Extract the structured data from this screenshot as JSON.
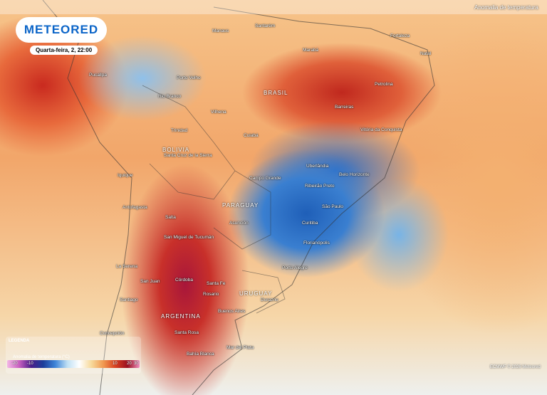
{
  "header": {
    "brand": "METEORED",
    "datetime": "Quarta-feira, 2, 22:00",
    "layer_title": "Anomalia de temperatura"
  },
  "map": {
    "countries": [
      "BRASIL",
      "BOLIVIA",
      "PARAGUAY",
      "ARGENTINA",
      "URUGUAY"
    ],
    "cities": [
      "Manaus",
      "Santarém",
      "Marabá",
      "Fortaleza",
      "Natal",
      "Petrolina",
      "Barreiras",
      "Vitória da Conquista",
      "Porto Velho",
      "Rio Branco",
      "Vilhena",
      "Cuiabá",
      "Uberlândia",
      "Belo Horizonte",
      "Campo Grande",
      "Ribeirão Preto",
      "São Paulo",
      "Curitiba",
      "Florianópolis",
      "Porto Alegre",
      "Durazno",
      "Buenos Aires",
      "Santa Fe",
      "Rosario",
      "Córdoba",
      "San Juan",
      "La Serena",
      "Santiago",
      "Concepción",
      "Santa Rosa",
      "Bahía Blanca",
      "Mar del Plata",
      "Asunción",
      "Salta",
      "San Miguel de Tucumán",
      "Antofagasta",
      "Iquique",
      "Santa Cruz de la Sierra",
      "Trinidad",
      "Pucallpa"
    ]
  },
  "legend": {
    "title": "LEGENDA",
    "subtitle": "Anomalia de temperatura (°C)",
    "ticks": [
      "-20",
      "-10",
      "10",
      "20",
      "30"
    ]
  },
  "credit": "ECMWF © 2026 Meteored"
}
